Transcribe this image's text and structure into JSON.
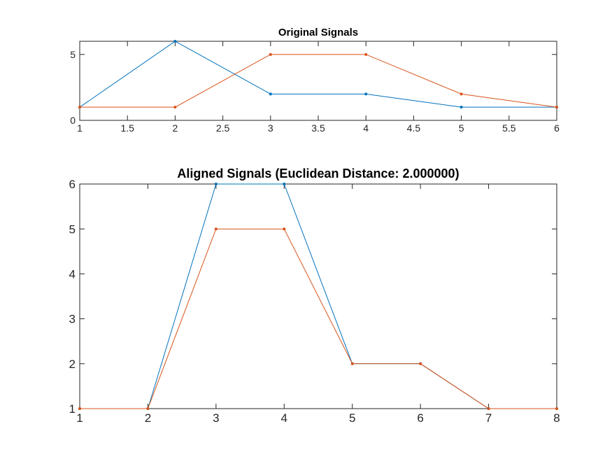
{
  "chart_data": [
    {
      "type": "line",
      "title": "Original Signals",
      "xlabel": "",
      "ylabel": "",
      "xlim": [
        1,
        6
      ],
      "ylim": [
        0,
        6
      ],
      "xticks": [
        1,
        1.5,
        2,
        2.5,
        3,
        3.5,
        4,
        4.5,
        5,
        5.5,
        6
      ],
      "xtick_labels": [
        "1",
        "1.5",
        "2",
        "2.5",
        "3",
        "3.5",
        "4",
        "4.5",
        "5",
        "5.5",
        "6"
      ],
      "yticks": [
        0,
        5
      ],
      "ytick_labels": [
        "0",
        "5"
      ],
      "grid": false,
      "series": [
        {
          "color": "#0072BD",
          "x": [
            1,
            2,
            3,
            4,
            5,
            6
          ],
          "y": [
            1,
            6,
            2,
            2,
            1,
            1
          ]
        },
        {
          "color": "#D95319",
          "x": [
            1,
            2,
            3,
            4,
            5,
            6
          ],
          "y": [
            1,
            1,
            5,
            5,
            2,
            1
          ]
        }
      ]
    },
    {
      "type": "line",
      "title": "Aligned Signals (Euclidean Distance: 2.000000)",
      "xlabel": "",
      "ylabel": "",
      "xlim": [
        1,
        8
      ],
      "ylim": [
        1,
        6
      ],
      "xticks": [
        1,
        2,
        3,
        4,
        5,
        6,
        7,
        8
      ],
      "xtick_labels": [
        "1",
        "2",
        "3",
        "4",
        "5",
        "6",
        "7",
        "8"
      ],
      "yticks": [
        1,
        2,
        3,
        4,
        5,
        6
      ],
      "ytick_labels": [
        "1",
        "2",
        "3",
        "4",
        "5",
        "6"
      ],
      "grid": false,
      "series": [
        {
          "color": "#0072BD",
          "x": [
            1,
            2,
            3,
            4,
            5,
            6,
            7,
            8
          ],
          "y": [
            1,
            1,
            6,
            6,
            2,
            2,
            1,
            1
          ]
        },
        {
          "color": "#D95319",
          "x": [
            1,
            2,
            3,
            4,
            5,
            6,
            7,
            8
          ],
          "y": [
            1,
            1,
            5,
            5,
            2,
            2,
            1,
            1
          ]
        }
      ]
    }
  ]
}
